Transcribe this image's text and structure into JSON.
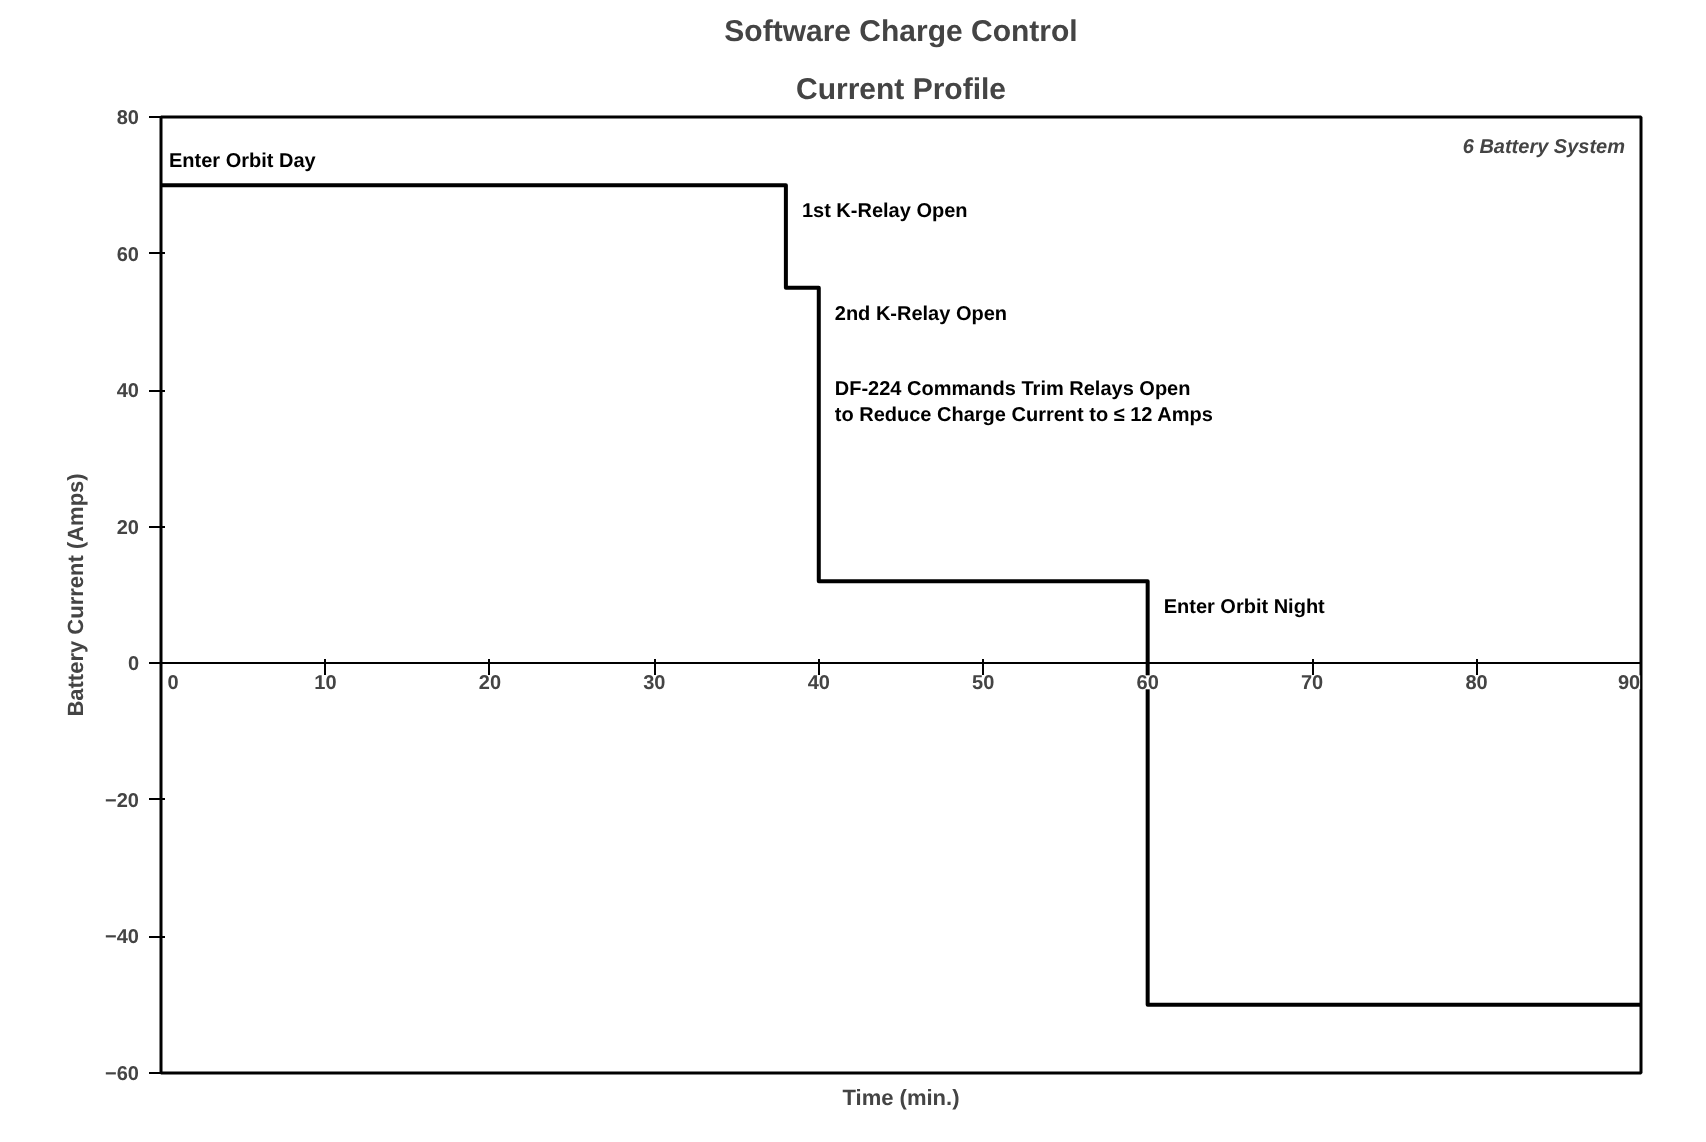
{
  "chart_data": {
    "type": "step",
    "title": "Software Charge Control",
    "subtitle": "Current Profile",
    "xlabel": "Time (min.)",
    "ylabel": "Battery Current (Amps)",
    "x": [
      0,
      38,
      40,
      60,
      90
    ],
    "series": [
      {
        "color": "#000000",
        "values": [
          70,
          55,
          12,
          -50,
          -50
        ]
      }
    ],
    "xlim": [
      0,
      90
    ],
    "xticks": [
      0,
      10,
      20,
      30,
      40,
      50,
      60,
      70,
      80,
      90
    ],
    "ylim": [
      -60,
      80
    ],
    "yticks": [
      -60,
      -40,
      -20,
      0,
      20,
      40,
      60,
      80
    ],
    "grid": false,
    "annotations": [
      {
        "text": "Enter Orbit Day",
        "x": 0,
        "y": 70
      },
      {
        "text": "1st K-Relay Open",
        "x": 38,
        "y": 70
      },
      {
        "text": "2nd K-Relay Open",
        "x": 40,
        "y": 55
      },
      {
        "text": "DF-224 Commands Trim Relays Open\nto Reduce Charge Current to ≤ 12 Amps",
        "x": 40,
        "y": 44
      },
      {
        "text": "Enter Orbit Night",
        "x": 60,
        "y": 12
      },
      "6 Battery System"
    ]
  }
}
